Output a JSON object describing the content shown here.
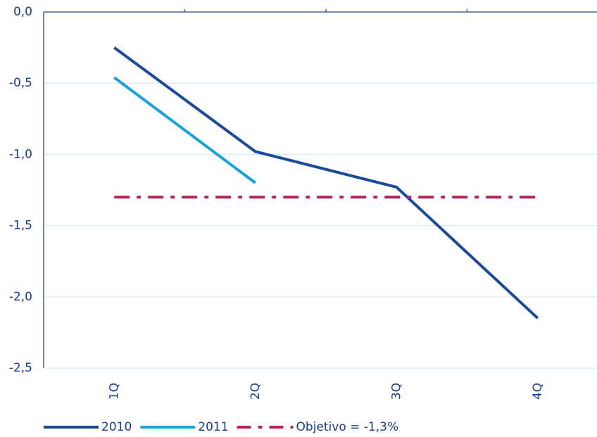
{
  "chart_data": {
    "type": "line",
    "categories": [
      "1Q",
      "2Q",
      "3Q",
      "4Q"
    ],
    "series": [
      {
        "name": "2010",
        "color": "#1b4a96",
        "values": [
          -0.25,
          -0.98,
          -1.23,
          -2.15
        ],
        "style": "solid"
      },
      {
        "name": "2011",
        "color": "#1ba1dc",
        "values": [
          -0.46,
          -1.2,
          null,
          null
        ],
        "style": "solid"
      },
      {
        "name": "Objetivo = -1,3%",
        "color": "#b3245e",
        "values": [
          -1.3,
          -1.3,
          -1.3,
          -1.3
        ],
        "style": "dashdot"
      }
    ],
    "ylim": [
      -2.5,
      0
    ],
    "yticks": [
      {
        "value": 0,
        "label": "0,0"
      },
      {
        "value": -0.5,
        "label": "-0,5"
      },
      {
        "value": -1,
        "label": "-1,0"
      },
      {
        "value": -1.5,
        "label": "-1,5"
      },
      {
        "value": -2,
        "label": "-2,0"
      },
      {
        "value": -2.5,
        "label": "-2,5"
      }
    ],
    "grid": true,
    "legend": "bottom"
  }
}
